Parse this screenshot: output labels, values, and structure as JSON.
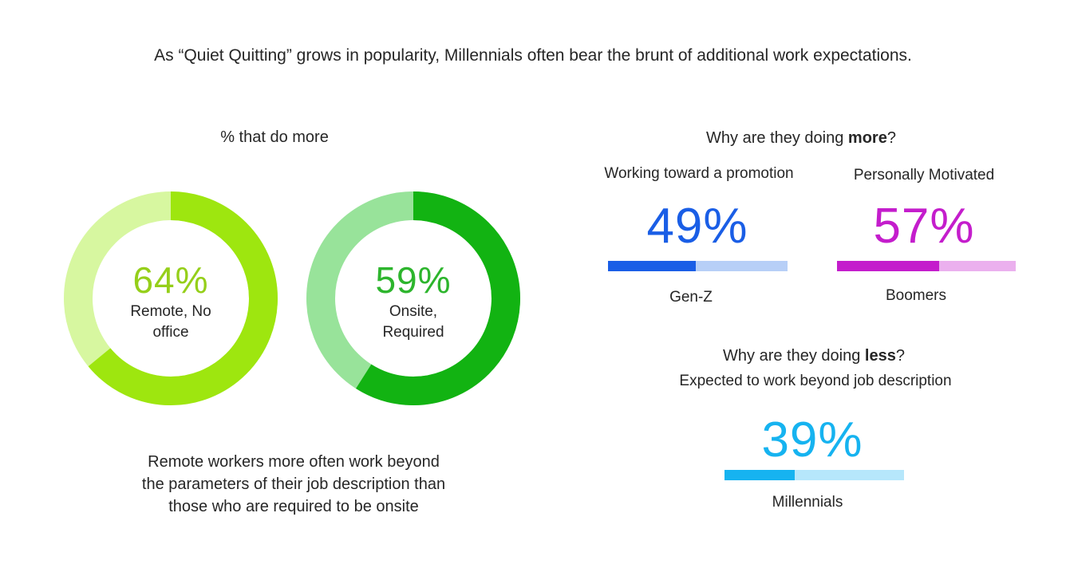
{
  "headline": "As “Quiet Quitting” grows in popularity, Millennials often bear the brunt of additional work expectations.",
  "left_panel": {
    "title": "% that do more",
    "caption_lines": [
      "Remote workers more often work beyond",
      "the parameters of their job description than",
      "those who are required to be onsite"
    ]
  },
  "right_panel": {
    "more_title_prefix": "Why are they doing ",
    "more_title_bold": "more",
    "more_title_suffix": "?",
    "less_title_prefix": "Why are they doing ",
    "less_title_bold": "less",
    "less_title_suffix": "?",
    "less_subtitle": "Expected to work beyond job description"
  },
  "chart_data": [
    {
      "type": "pie",
      "variant": "donut",
      "value_label": "64%",
      "value": 64,
      "label_line1": "Remote, No",
      "label_line2": "office",
      "colors": {
        "filled": "#9ee60f",
        "remaining": "#d7f7a0",
        "text": "#95cf1a"
      }
    },
    {
      "type": "pie",
      "variant": "donut",
      "value_label": "59%",
      "value": 59,
      "label_line1": "Onsite,",
      "label_line2": "Required",
      "colors": {
        "filled": "#12b312",
        "remaining": "#98e39a",
        "text": "#2db52d"
      }
    },
    {
      "type": "bar",
      "variant": "progress",
      "reason": "Working toward a promotion",
      "value_label": "49%",
      "value": 49,
      "group": "Gen-Z",
      "colors": {
        "filled": "#1a5ee6",
        "remaining": "#b7cff7",
        "text": "#1a5ee6"
      }
    },
    {
      "type": "bar",
      "variant": "progress",
      "reason": "Personally Motivated",
      "value_label": "57%",
      "value": 57,
      "group": "Boomers",
      "colors": {
        "filled": "#c41dcc",
        "remaining": "#ebb0ee",
        "text": "#c41dcc"
      }
    },
    {
      "type": "bar",
      "variant": "progress",
      "reason": "",
      "value_label": "39%",
      "value": 39,
      "group": "Millennials",
      "colors": {
        "filled": "#16b3f0",
        "remaining": "#b6e7fb",
        "text": "#16b3f0"
      }
    }
  ]
}
